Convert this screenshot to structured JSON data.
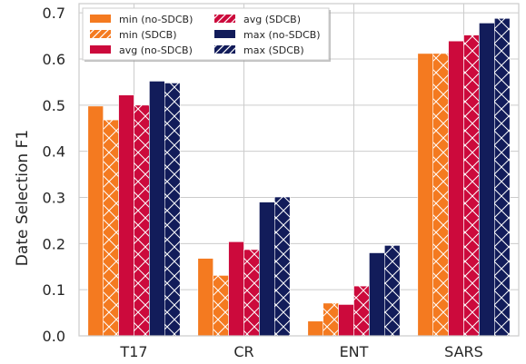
{
  "chart_data": {
    "type": "bar",
    "title": "",
    "xlabel": "",
    "ylabel": "Date Selection F1",
    "categories": [
      "T17",
      "CR",
      "ENT",
      "SARS"
    ],
    "ylim": [
      0,
      0.72
    ],
    "yticks": [
      "0.0",
      "0.1",
      "0.2",
      "0.3",
      "0.4",
      "0.5",
      "0.6",
      "0.7"
    ],
    "grid": true,
    "legend_position": "top-left",
    "legend_columns": 2,
    "series": [
      {
        "name": "min (no-SDCB)",
        "values": [
          0.498,
          0.168,
          0.032,
          0.612
        ],
        "color": "#f47a20",
        "hatch": false
      },
      {
        "name": "min (SDCB)",
        "values": [
          0.468,
          0.131,
          0.071,
          0.612
        ],
        "color": "#f47a20",
        "hatch": true
      },
      {
        "name": "avg (no-SDCB)",
        "values": [
          0.522,
          0.204,
          0.068,
          0.639
        ],
        "color": "#cc0a3c",
        "hatch": false
      },
      {
        "name": "avg (SDCB)",
        "values": [
          0.5,
          0.187,
          0.108,
          0.652
        ],
        "color": "#cc0a3c",
        "hatch": true
      },
      {
        "name": "max (no-SDCB)",
        "values": [
          0.552,
          0.29,
          0.18,
          0.678
        ],
        "color": "#121c5a",
        "hatch": false
      },
      {
        "name": "max (SDCB)",
        "values": [
          0.548,
          0.301,
          0.196,
          0.688
        ],
        "color": "#121c5a",
        "hatch": true
      }
    ]
  }
}
